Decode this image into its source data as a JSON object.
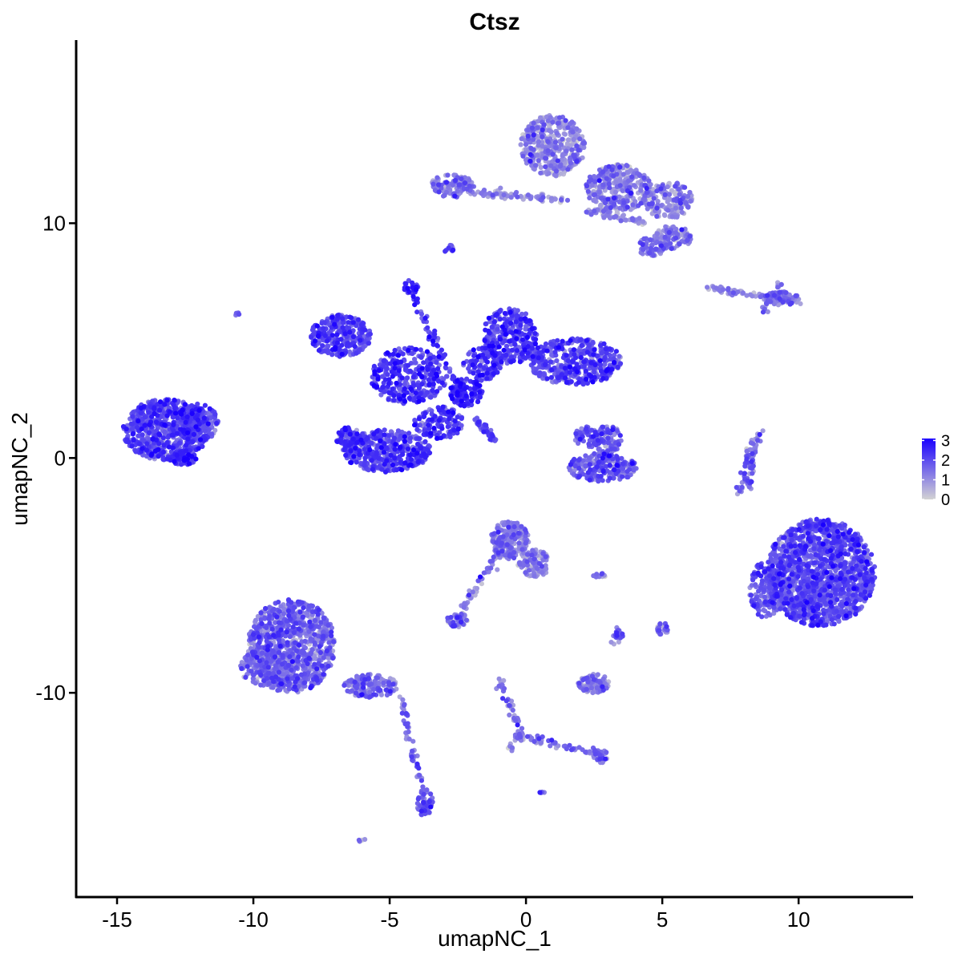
{
  "chart_data": {
    "type": "scatter",
    "title": "Ctsz",
    "xlabel": "umapNC_1",
    "ylabel": "umapNC_2",
    "xlim": [
      -16.5,
      14.2
    ],
    "ylim": [
      -18.7,
      17.8
    ],
    "x_ticks": [
      -15,
      -10,
      -5,
      0,
      5,
      10
    ],
    "y_ticks": [
      -10,
      0,
      10
    ],
    "x_tick_labels": [
      "-15",
      "-10",
      "-5",
      "0",
      "5",
      "10"
    ],
    "y_tick_labels": [
      "-10",
      "0",
      "10"
    ],
    "grid": false,
    "legend": {
      "placement": "right",
      "type": "colorbar",
      "min": 0,
      "max": 3.1,
      "ticks": [
        0,
        1,
        2,
        3
      ],
      "tick_labels": [
        "0",
        "1",
        "2",
        "3"
      ],
      "color_low": "#d3d3d3",
      "color_high": "#1a00ff"
    },
    "clusters": [
      {
        "cx": -13.2,
        "cy": 1.2,
        "rx": 1.6,
        "ry": 1.3,
        "n": 700,
        "mean_expr": 1.9
      },
      {
        "cx": -12.0,
        "cy": 1.5,
        "rx": 0.7,
        "ry": 0.8,
        "n": 150,
        "mean_expr": 1.8
      },
      {
        "cx": -12.6,
        "cy": 0.0,
        "rx": 0.5,
        "ry": 0.3,
        "n": 60,
        "mean_expr": 2.3
      },
      {
        "cx": -10.6,
        "cy": 6.1,
        "rx": 0.1,
        "ry": 0.1,
        "n": 4,
        "mean_expr": 1.5
      },
      {
        "cx": -6.8,
        "cy": 5.2,
        "rx": 1.1,
        "ry": 0.9,
        "n": 300,
        "mean_expr": 1.9
      },
      {
        "cx": -4.3,
        "cy": 3.5,
        "rx": 1.4,
        "ry": 1.2,
        "n": 320,
        "mean_expr": 2.1
      },
      {
        "cx": -4.2,
        "cy": 7.3,
        "rx": 0.3,
        "ry": 0.3,
        "n": 25,
        "mean_expr": 2.4
      },
      {
        "cx": -5.1,
        "cy": 0.3,
        "rx": 1.6,
        "ry": 0.9,
        "n": 420,
        "mean_expr": 2.0
      },
      {
        "cx": -6.5,
        "cy": 0.8,
        "rx": 0.5,
        "ry": 0.5,
        "n": 80,
        "mean_expr": 2.1
      },
      {
        "cx": -3.2,
        "cy": 1.5,
        "rx": 0.9,
        "ry": 0.7,
        "n": 130,
        "mean_expr": 2.1
      },
      {
        "cx": -2.2,
        "cy": 2.8,
        "rx": 0.6,
        "ry": 0.6,
        "n": 110,
        "mean_expr": 2.5
      },
      {
        "cx": -0.6,
        "cy": 5.2,
        "rx": 1.0,
        "ry": 1.2,
        "n": 300,
        "mean_expr": 2.0
      },
      {
        "cx": 1.8,
        "cy": 4.1,
        "rx": 1.7,
        "ry": 1.0,
        "n": 450,
        "mean_expr": 1.9
      },
      {
        "cx": -1.6,
        "cy": 4.0,
        "rx": 0.7,
        "ry": 0.7,
        "n": 110,
        "mean_expr": 2.0
      },
      {
        "cx": 2.8,
        "cy": -0.4,
        "rx": 1.3,
        "ry": 0.6,
        "n": 200,
        "mean_expr": 1.7
      },
      {
        "cx": 3.0,
        "cy": 0.8,
        "rx": 0.5,
        "ry": 0.6,
        "n": 80,
        "mean_expr": 1.6
      },
      {
        "cx": 2.2,
        "cy": 0.9,
        "rx": 0.4,
        "ry": 0.5,
        "n": 50,
        "mean_expr": 1.6
      },
      {
        "cx": 8.2,
        "cy": -0.2,
        "rx": 0.15,
        "ry": 1.2,
        "n": 40,
        "mean_expr": 1.5
      },
      {
        "cx": 10.8,
        "cy": -4.9,
        "rx": 2.0,
        "ry": 2.3,
        "n": 1500,
        "mean_expr": 1.8
      },
      {
        "cx": 8.8,
        "cy": -5.6,
        "rx": 0.6,
        "ry": 1.2,
        "n": 150,
        "mean_expr": 1.6
      },
      {
        "cx": 1.0,
        "cy": 13.3,
        "rx": 1.2,
        "ry": 1.3,
        "n": 400,
        "mean_expr": 1.0
      },
      {
        "cx": 3.4,
        "cy": 11.5,
        "rx": 1.2,
        "ry": 1.0,
        "n": 320,
        "mean_expr": 1.1
      },
      {
        "cx": 5.2,
        "cy": 11.0,
        "rx": 0.9,
        "ry": 0.8,
        "n": 160,
        "mean_expr": 1.0
      },
      {
        "cx": 5.4,
        "cy": 9.4,
        "rx": 0.7,
        "ry": 0.5,
        "n": 120,
        "mean_expr": 1.1
      },
      {
        "cx": 4.6,
        "cy": 9.0,
        "rx": 0.5,
        "ry": 0.4,
        "n": 60,
        "mean_expr": 1.3
      },
      {
        "cx": -2.7,
        "cy": 11.6,
        "rx": 0.8,
        "ry": 0.5,
        "n": 120,
        "mean_expr": 1.2
      },
      {
        "cx": -2.8,
        "cy": 8.9,
        "rx": 0.2,
        "ry": 0.2,
        "n": 12,
        "mean_expr": 1.4
      },
      {
        "cx": 9.4,
        "cy": 6.8,
        "rx": 0.6,
        "ry": 0.3,
        "n": 50,
        "mean_expr": 1.4
      },
      {
        "cx": -8.6,
        "cy": -8.0,
        "rx": 1.6,
        "ry": 2.0,
        "n": 900,
        "mean_expr": 1.4
      },
      {
        "cx": -9.5,
        "cy": -8.9,
        "rx": 1.0,
        "ry": 0.8,
        "n": 200,
        "mean_expr": 1.3
      },
      {
        "cx": -5.7,
        "cy": -9.7,
        "rx": 1.0,
        "ry": 0.5,
        "n": 150,
        "mean_expr": 1.3
      },
      {
        "cx": -3.7,
        "cy": -14.7,
        "rx": 0.3,
        "ry": 0.6,
        "n": 50,
        "mean_expr": 1.7
      },
      {
        "cx": -0.6,
        "cy": -3.5,
        "rx": 0.7,
        "ry": 0.8,
        "n": 200,
        "mean_expr": 1.2
      },
      {
        "cx": 0.3,
        "cy": -4.5,
        "rx": 0.6,
        "ry": 0.6,
        "n": 100,
        "mean_expr": 1.1
      },
      {
        "cx": -2.5,
        "cy": -6.9,
        "rx": 0.4,
        "ry": 0.3,
        "n": 50,
        "mean_expr": 1.3
      },
      {
        "cx": 2.5,
        "cy": -9.6,
        "rx": 0.6,
        "ry": 0.4,
        "n": 90,
        "mean_expr": 1.2
      },
      {
        "cx": 2.7,
        "cy": -12.7,
        "rx": 0.3,
        "ry": 0.3,
        "n": 30,
        "mean_expr": 1.5
      },
      {
        "cx": 5.0,
        "cy": -7.3,
        "rx": 0.2,
        "ry": 0.3,
        "n": 25,
        "mean_expr": 1.3
      },
      {
        "cx": 3.4,
        "cy": -7.6,
        "rx": 0.15,
        "ry": 0.3,
        "n": 15,
        "mean_expr": 1.5
      },
      {
        "cx": 2.7,
        "cy": -5.0,
        "rx": 0.25,
        "ry": 0.1,
        "n": 10,
        "mean_expr": 1.4
      },
      {
        "cx": -6.0,
        "cy": -16.3,
        "rx": 0.15,
        "ry": 0.1,
        "n": 4,
        "mean_expr": 1.3
      },
      {
        "cx": 0.6,
        "cy": -14.2,
        "rx": 0.1,
        "ry": 0.1,
        "n": 4,
        "mean_expr": 1.4
      }
    ],
    "trails": [
      {
        "from": [
          -4.3,
          7.3
        ],
        "to": [
          -2.3,
          2.5
        ],
        "n": 60,
        "mean_expr": 2.2
      },
      {
        "from": [
          -1.8,
          1.6
        ],
        "to": [
          -1.1,
          0.7
        ],
        "n": 40,
        "mean_expr": 2.0
      },
      {
        "from": [
          -4.6,
          -10.2
        ],
        "to": [
          -3.8,
          -14.2
        ],
        "n": 50,
        "mean_expr": 1.5
      },
      {
        "from": [
          -0.9,
          -3.9
        ],
        "to": [
          -2.4,
          -6.6
        ],
        "n": 50,
        "mean_expr": 1.1
      },
      {
        "from": [
          -1.0,
          -9.4
        ],
        "to": [
          -0.2,
          -11.8
        ],
        "n": 40,
        "mean_expr": 1.3
      },
      {
        "from": [
          -0.2,
          -11.8
        ],
        "to": [
          2.6,
          -12.6
        ],
        "n": 50,
        "mean_expr": 1.4
      },
      {
        "from": [
          -0.2,
          -11.8
        ],
        "to": [
          -0.6,
          -12.4
        ],
        "n": 15,
        "mean_expr": 1.4
      },
      {
        "from": [
          -2.0,
          11.3
        ],
        "to": [
          1.5,
          11.0
        ],
        "n": 80,
        "mean_expr": 1.0
      },
      {
        "from": [
          2.2,
          10.6
        ],
        "to": [
          4.4,
          10.0
        ],
        "n": 60,
        "mean_expr": 0.9
      },
      {
        "from": [
          6.7,
          7.2
        ],
        "to": [
          10.0,
          6.7
        ],
        "n": 70,
        "mean_expr": 1.1
      },
      {
        "from": [
          8.7,
          6.3
        ],
        "to": [
          9.3,
          7.4
        ],
        "n": 30,
        "mean_expr": 1.3
      },
      {
        "from": [
          8.6,
          1.2
        ],
        "to": [
          7.8,
          -1.5
        ],
        "n": 40,
        "mean_expr": 1.5
      },
      {
        "from": [
          3.4,
          -7.2
        ],
        "to": [
          3.2,
          -8.2
        ],
        "n": 12,
        "mean_expr": 1.5
      }
    ]
  }
}
